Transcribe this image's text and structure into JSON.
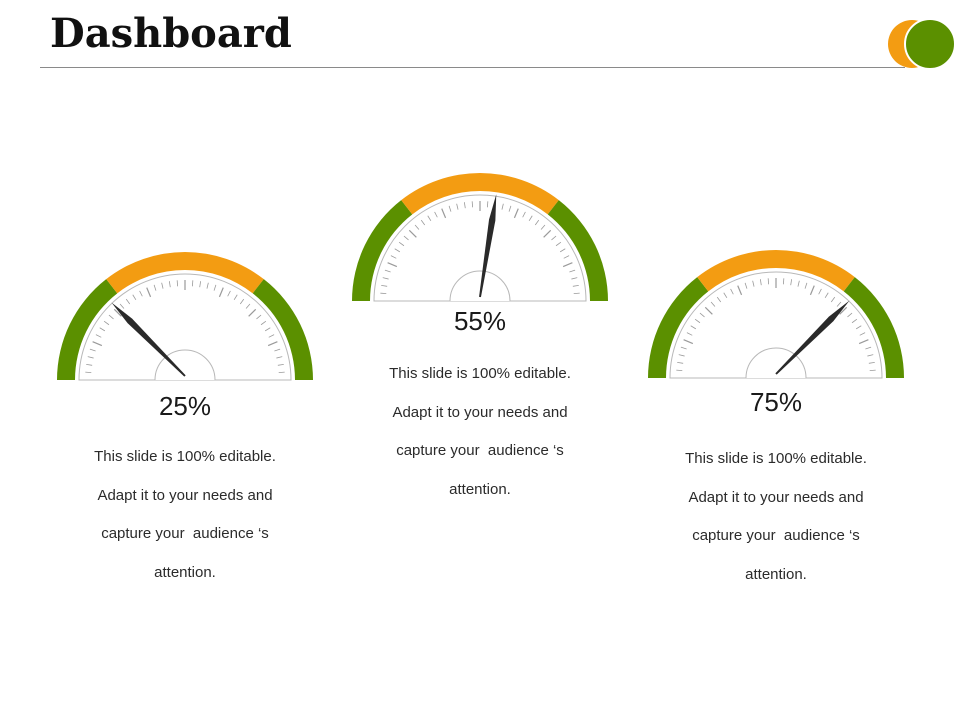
{
  "title": "Dashboard",
  "colors": {
    "green": "#5b9000",
    "orange": "#f39c12",
    "needle": "#2a2a2a"
  },
  "gauges": [
    {
      "value_label": "25%",
      "value": 25,
      "description": [
        "This slide is 100% editable.",
        "Adapt it to your needs and",
        "capture your  audience ‘s",
        "attention."
      ]
    },
    {
      "value_label": "55%",
      "value": 55,
      "description": [
        "This slide is 100% editable.",
        "Adapt it to your needs and",
        "capture your  audience ‘s",
        "attention."
      ]
    },
    {
      "value_label": "75%",
      "value": 75,
      "description": [
        "This slide is 100% editable.",
        "Adapt it to your needs and",
        "capture your  audience ‘s",
        "attention."
      ]
    }
  ]
}
